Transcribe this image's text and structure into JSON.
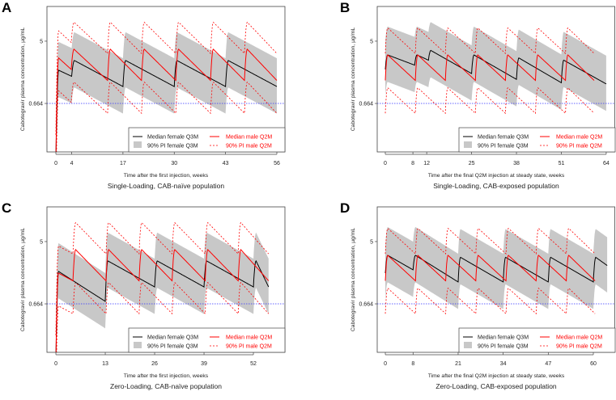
{
  "chart_data": [
    {
      "type": "line",
      "letter": "A",
      "title": "Single-Loading, CAB-naïve population",
      "xlabel": "Time after the first injection, weeks",
      "ylabel": "Cabotegravir  plasma concentration, µg/mL",
      "xticks": [
        0,
        4,
        17,
        30,
        43,
        56
      ],
      "xlim": [
        -2.26,
        58.05
      ],
      "yscale": "log",
      "ylim": [
        0.138,
        15.4
      ],
      "yticks": [
        "0.664",
        "5"
      ],
      "ytick_values": [
        0.664,
        5
      ],
      "threshold": 0.664,
      "female": {
        "doses": [
          0,
          4,
          17,
          30,
          43
        ],
        "peaks": [
          1.95,
          2.67,
          2.67,
          2.67,
          2.67
        ],
        "troughs": [
          1.6,
          1.15,
          1.15,
          1.15,
          1.15
        ],
        "start": 0.1,
        "end": 56
      },
      "male": {
        "doses": [
          0,
          3.9,
          13.1,
          21.7,
          30.4,
          39.2,
          47.8
        ],
        "peaks": [
          2.9,
          3.85,
          3.85,
          3.85,
          3.85,
          3.85,
          3.85
        ],
        "troughs": [
          2.0,
          1.4,
          1.4,
          1.4,
          1.4,
          1.4,
          1.4
        ],
        "start": 0.1,
        "end": 56
      },
      "legend": [
        "Median female Q3M",
        "90% PI female Q3M",
        "Median male Q2M",
        "90% PI male Q2M"
      ],
      "legend_position": "bottom-right"
    },
    {
      "type": "line",
      "letter": "B",
      "title": "Single-Loading, CAB-exposed population",
      "xlabel": "Time after the final Q2M injection at steady state, weeks",
      "ylabel": "Cabotegravir  plasma concentration, µg/mL",
      "xticks": [
        0,
        8,
        12,
        25,
        38,
        51,
        64
      ],
      "xlim": [
        -2.34,
        66.6
      ],
      "yscale": "log",
      "ylim": [
        0.138,
        15.4
      ],
      "yticks": [
        "0.664",
        "5"
      ],
      "ytick_values": [
        0.664,
        5
      ],
      "threshold": 0.664,
      "female": {
        "doses": [
          0,
          8.5,
          12.5,
          25,
          38,
          51
        ],
        "peaks": [
          3.2,
          3.2,
          3.7,
          3.2,
          2.9,
          2.7
        ],
        "troughs": [
          2.3,
          2.7,
          1.75,
          1.45,
          1.3,
          1.25
        ],
        "start": 2.0,
        "end": 64
      },
      "male": {
        "doses": [
          0,
          8.7,
          17.4,
          26.1,
          34.8,
          43.5,
          52.2
        ],
        "peaks": [
          3.2,
          3.2,
          3.2,
          3.2,
          3.2,
          3.2,
          3.2
        ],
        "troughs": [
          1.4,
          1.4,
          1.4,
          1.4,
          1.4,
          1.4,
          1.4
        ],
        "start": 1.4,
        "end": 60.5
      },
      "legend": [
        "Median female Q3M",
        "90% PI female Q3M",
        "Median male Q2M",
        "90% PI male Q2M"
      ],
      "legend_position": "bottom-right"
    },
    {
      "type": "line",
      "letter": "C",
      "title": "Zero-Loading, CAB-naïve population",
      "xlabel": "Time after the first injection, weeks",
      "ylabel": "Cabotegravir  plasma concentration, µg/mL",
      "xticks": [
        0,
        13,
        26,
        39,
        52
      ],
      "xlim": [
        -2.35,
        60.3
      ],
      "yscale": "log",
      "ylim": [
        0.138,
        15.4
      ],
      "yticks": [
        "0.664",
        "5"
      ],
      "ytick_values": [
        0.664,
        5
      ],
      "threshold": 0.664,
      "female": {
        "doses": [
          0,
          13,
          26,
          39,
          52
        ],
        "peaks": [
          1.9,
          2.67,
          2.67,
          2.67,
          2.67
        ],
        "troughs": [
          0.72,
          1.15,
          1.15,
          1.15,
          1.15
        ],
        "start": 0.1,
        "end": 56
      },
      "male": {
        "doses": [
          0,
          4.5,
          13.2,
          21.9,
          30.6,
          39.3,
          48
        ],
        "peaks": [
          1.8,
          3.85,
          3.85,
          3.85,
          3.85,
          3.85,
          3.85
        ],
        "troughs": [
          1.4,
          1.4,
          1.4,
          1.4,
          1.4,
          1.4,
          1.4
        ],
        "start": 0.1,
        "end": 56
      },
      "legend": [
        "Median female Q3M",
        "90% PI female Q3M",
        "Median male Q2M",
        "90% PI male Q2M"
      ],
      "legend_position": "bottom-right"
    },
    {
      "type": "line",
      "letter": "D",
      "title": "Zero-Loading, CAB-exposed population",
      "xlabel": "Time after the final Q2M injection at steady state, weeks",
      "ylabel": "Cabotegravir  plasma concentration, µg/mL",
      "xticks": [
        0,
        8,
        21,
        34,
        47,
        60
      ],
      "xlim": [
        -2.34,
        66.3
      ],
      "yscale": "log",
      "ylim": [
        0.138,
        15.4
      ],
      "yticks": [
        "0.664",
        "5"
      ],
      "ytick_values": [
        0.664,
        5
      ],
      "threshold": 0.664,
      "female": {
        "doses": [
          0,
          8,
          21,
          34,
          47,
          60
        ],
        "peaks": [
          3.2,
          3.2,
          3.0,
          3.0,
          3.0,
          3.0
        ],
        "troughs": [
          2.0,
          1.35,
          1.35,
          1.35,
          1.35,
          2.3
        ],
        "start": 1.8,
        "end": 64
      },
      "male": {
        "doses": [
          0,
          8.7,
          17.4,
          26.1,
          34.8,
          43.5,
          52.2
        ],
        "peaks": [
          3.2,
          3.2,
          3.2,
          3.2,
          3.2,
          3.2,
          3.2
        ],
        "troughs": [
          1.4,
          1.4,
          1.4,
          1.4,
          1.4,
          1.4,
          1.4
        ],
        "start": 1.4,
        "end": 60.5
      },
      "legend": [
        "Median female Q3M",
        "90% PI female Q3M",
        "Median male Q2M",
        "90% PI male Q2M"
      ],
      "legend_position": "bottom-right"
    }
  ],
  "colors": {
    "female": "#000000",
    "band": "#c8c8c8",
    "male": "#ff0000",
    "threshold": "#3333ff"
  },
  "band_factors": {
    "female_upper": 2.5,
    "female_lower": 2.4,
    "male_upper": 2.4,
    "male_lower": 2.9
  }
}
